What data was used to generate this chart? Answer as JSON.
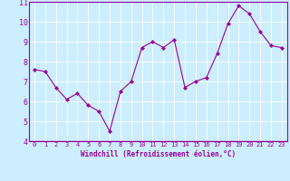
{
  "x": [
    0,
    1,
    2,
    3,
    4,
    5,
    6,
    7,
    8,
    9,
    10,
    11,
    12,
    13,
    14,
    15,
    16,
    17,
    18,
    19,
    20,
    21,
    22,
    23
  ],
  "y": [
    7.6,
    7.5,
    6.7,
    6.1,
    6.4,
    5.8,
    5.5,
    4.5,
    6.5,
    7.0,
    8.7,
    9.0,
    8.7,
    9.1,
    6.7,
    7.0,
    7.2,
    8.4,
    9.9,
    10.8,
    10.4,
    9.5,
    8.8,
    8.7
  ],
  "xlabel": "Windchill (Refroidissement éolien,°C)",
  "ylim": [
    4,
    11
  ],
  "xlim": [
    -0.5,
    23.5
  ],
  "yticks": [
    4,
    5,
    6,
    7,
    8,
    9,
    10,
    11
  ],
  "xticks": [
    0,
    1,
    2,
    3,
    4,
    5,
    6,
    7,
    8,
    9,
    10,
    11,
    12,
    13,
    14,
    15,
    16,
    17,
    18,
    19,
    20,
    21,
    22,
    23
  ],
  "line_color": "#990099",
  "marker": "D",
  "marker_size": 2.0,
  "bg_color": "#cceeff",
  "grid_color": "#ffffff",
  "label_color": "#990099",
  "tick_color": "#990099",
  "border_color": "#990099",
  "xlabel_fontsize": 5.5,
  "ytick_fontsize": 6.0,
  "xtick_fontsize": 5.0
}
